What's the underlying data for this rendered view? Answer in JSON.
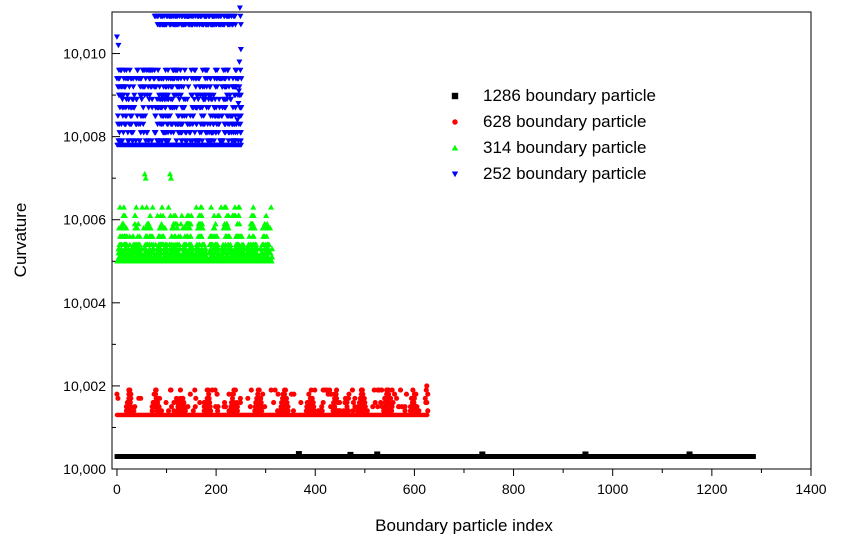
{
  "chart_data": {
    "type": "scatter",
    "xlabel": "Boundary particle index",
    "ylabel": "Curvature",
    "xlim": [
      -10,
      1400
    ],
    "ylim": [
      10.0,
      10.011
    ],
    "x_ticks": [
      0,
      200,
      400,
      600,
      800,
      1000,
      1200,
      1400
    ],
    "x_tick_labels": [
      "0",
      "200",
      "400",
      "600",
      "800",
      "1000",
      "1200",
      "1400"
    ],
    "y_ticks": [
      10.0,
      10.002,
      10.004,
      10.006,
      10.008,
      10.01
    ],
    "y_tick_labels": [
      "10,000",
      "10,002",
      "10,004",
      "10,006",
      "10,008",
      "10,010"
    ],
    "grid": false,
    "legend_position": "top-right",
    "series": [
      {
        "name": "1286 boundary particle",
        "marker": "square",
        "color": "#000000",
        "count": 1286,
        "base": 10.0003,
        "spikes": [
          [
            367,
            10.00036
          ],
          [
            471,
            10.00034
          ],
          [
            525,
            10.00035
          ],
          [
            737,
            10.00035
          ],
          [
            945,
            10.00035
          ],
          [
            1155,
            10.00035
          ]
        ]
      },
      {
        "name": "628 boundary particle",
        "marker": "circle",
        "color": "#ff0000",
        "count": 628,
        "base": 10.0013,
        "rows": [
          10.0014,
          10.0015,
          10.0016,
          10.0017,
          10.0018,
          10.0019
        ],
        "spikes": [
          [
            0,
            10.0018
          ],
          [
            2,
            10.0017
          ],
          [
            625,
            10.002
          ],
          [
            624,
            10.0019
          ],
          [
            622,
            10.0017
          ],
          [
            623,
            10.0016
          ]
        ]
      },
      {
        "name": "314 boundary particle",
        "marker": "triangle-up",
        "color": "#00ff00",
        "count": 314,
        "base": 10.005,
        "rows": [
          10.0051,
          10.0052,
          10.0053,
          10.0054,
          10.0056,
          10.0058,
          10.0059,
          10.0061,
          10.0063
        ],
        "spikes": [
          [
            56,
            10.0071
          ],
          [
            58,
            10.007
          ],
          [
            107,
            10.0071
          ],
          [
            109,
            10.007
          ],
          [
            160,
            10.0063
          ],
          [
            210,
            10.0063
          ],
          [
            236,
            10.0061
          ]
        ]
      },
      {
        "name": "252 boundary particle",
        "marker": "triangle-down",
        "color": "#0000ff",
        "count": 252,
        "base": 10.0078,
        "rows": [
          10.0079,
          10.0081,
          10.0083,
          10.0085,
          10.0087,
          10.0089,
          10.009,
          10.0092,
          10.0094,
          10.0096,
          10.0107,
          10.0109
        ],
        "spikes": [
          [
            0,
            10.0104
          ],
          [
            3,
            10.0102
          ],
          [
            248,
            10.0111
          ],
          [
            249,
            10.0109
          ],
          [
            250,
            10.0107
          ],
          [
            250,
            10.0101
          ],
          [
            247,
            10.0098
          ],
          [
            246,
            10.0091
          ],
          [
            245,
            10.0088
          ],
          [
            243,
            10.0084
          ]
        ]
      }
    ]
  }
}
